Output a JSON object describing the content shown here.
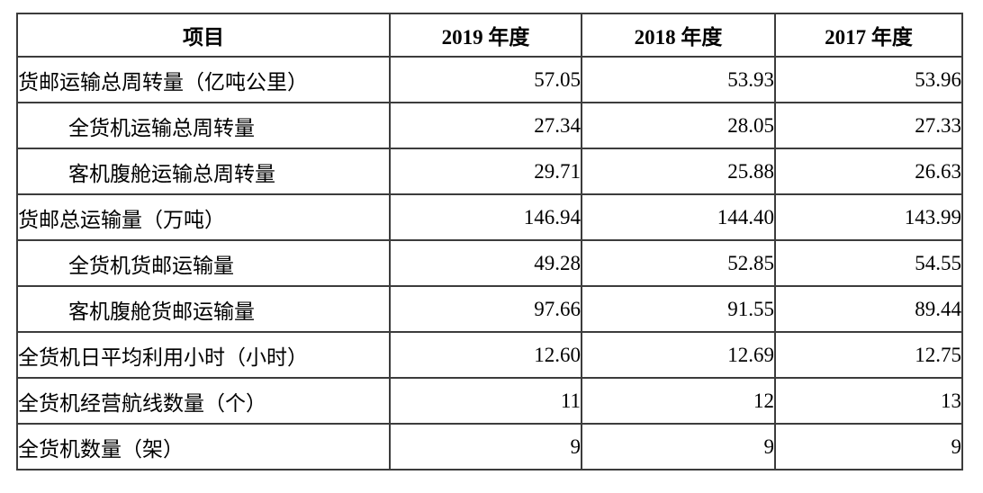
{
  "colors": {
    "background": "#ffffff",
    "border": "#3c3c3c",
    "text": "#000000"
  },
  "table": {
    "columns": [
      "项目",
      "2019 年度",
      "2018 年度",
      "2017 年度"
    ],
    "rows": [
      {
        "label": "货邮运输总周转量（亿吨公里）",
        "indent": false,
        "values": [
          "57.05",
          "53.93",
          "53.96"
        ]
      },
      {
        "label": "全货机运输总周转量",
        "indent": true,
        "values": [
          "27.34",
          "28.05",
          "27.33"
        ]
      },
      {
        "label": "客机腹舱运输总周转量",
        "indent": true,
        "values": [
          "29.71",
          "25.88",
          "26.63"
        ]
      },
      {
        "label": "货邮总运输量（万吨）",
        "indent": false,
        "values": [
          "146.94",
          "144.40",
          "143.99"
        ]
      },
      {
        "label": "全货机货邮运输量",
        "indent": true,
        "values": [
          "49.28",
          "52.85",
          "54.55"
        ]
      },
      {
        "label": "客机腹舱货邮运输量",
        "indent": true,
        "values": [
          "97.66",
          "91.55",
          "89.44"
        ]
      },
      {
        "label": "全货机日平均利用小时（小时）",
        "indent": false,
        "values": [
          "12.60",
          "12.69",
          "12.75"
        ]
      },
      {
        "label": "全货机经营航线数量（个）",
        "indent": false,
        "values": [
          "11",
          "12",
          "13"
        ]
      },
      {
        "label": "全货机数量（架）",
        "indent": false,
        "values": [
          "9",
          "9",
          "9"
        ]
      }
    ]
  }
}
